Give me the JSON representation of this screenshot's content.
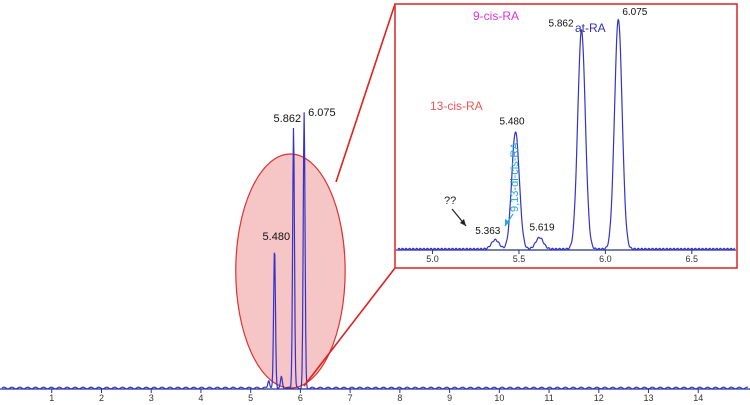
{
  "chart_data": [
    {
      "type": "line",
      "title": "",
      "xlabel": "",
      "ylabel": "",
      "xlim": [
        0,
        15
      ],
      "x_ticks": [
        "1",
        "2",
        "3",
        "4",
        "5",
        "6",
        "7",
        "8",
        "9",
        "10",
        "11",
        "12",
        "13",
        "14"
      ],
      "grid": false,
      "peaks": [
        {
          "x": 5.363,
          "height": 0.03
        },
        {
          "x": 5.48,
          "height": 0.51
        },
        {
          "x": 5.619,
          "height": 0.04
        },
        {
          "x": 5.862,
          "height": 0.95
        },
        {
          "x": 6.075,
          "height": 1.0
        }
      ],
      "peak_labels": [
        {
          "x": 5.48,
          "label": "5.480"
        },
        {
          "x": 5.862,
          "label": "5.862"
        },
        {
          "x": 6.075,
          "label": "6.075"
        }
      ],
      "line_color": "#3333cc",
      "highlight_ellipse": {
        "x_from": 4.7,
        "x_to": 6.9,
        "color": "#f4b6b6",
        "stroke": "#e03030"
      }
    },
    {
      "type": "line",
      "title": "",
      "xlabel": "",
      "ylabel": "",
      "xlim": [
        4.8,
        6.75
      ],
      "x_ticks": [
        "5.0",
        "5.5",
        "6.0",
        "6.5"
      ],
      "grid": false,
      "peaks": [
        {
          "x": 5.363,
          "height": 0.04
        },
        {
          "x": 5.48,
          "height": 0.51
        },
        {
          "x": 5.619,
          "height": 0.05
        },
        {
          "x": 5.862,
          "height": 0.95
        },
        {
          "x": 6.075,
          "height": 1.0
        }
      ],
      "peak_labels": [
        {
          "x": 5.363,
          "label": "5.363"
        },
        {
          "x": 5.48,
          "label": "5.480"
        },
        {
          "x": 5.619,
          "label": "5.619"
        },
        {
          "x": 5.862,
          "label": "5.862"
        },
        {
          "x": 6.075,
          "label": "6.075"
        }
      ],
      "annotations": [
        {
          "text": "9-cis-RA",
          "color": "#dd33dd"
        },
        {
          "text": "at-RA",
          "color": "#3333aa"
        },
        {
          "text": "13-cis-RA",
          "color": "#ee5555"
        },
        {
          "text": "9,13-di-cis-RA",
          "color": "#22aadd"
        },
        {
          "text": "??",
          "color": "#222222"
        }
      ],
      "line_color": "#3333cc",
      "frame_color": "#e03030"
    }
  ]
}
